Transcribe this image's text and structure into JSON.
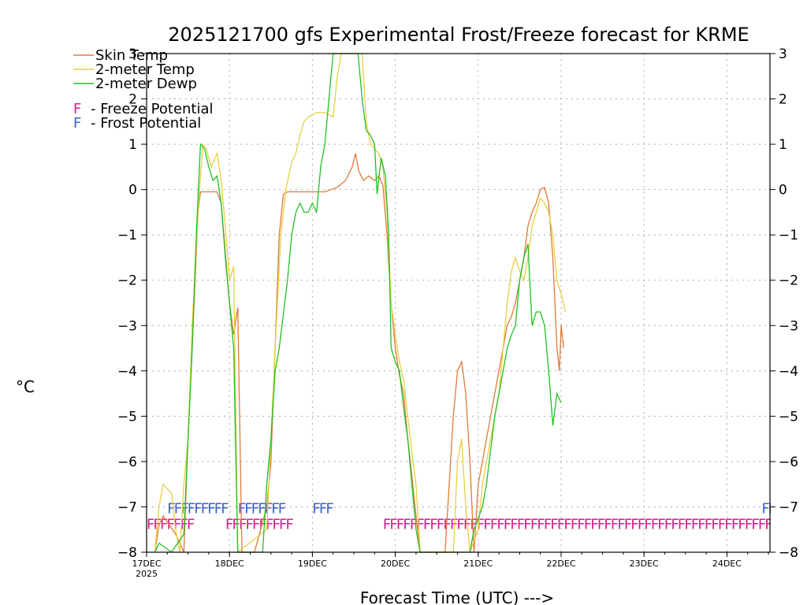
{
  "chart_data": {
    "type": "line",
    "title": "2025121700 gfs Experimental Frost/Freeze forecast for KRME",
    "ylabel": "°C",
    "xlabel": "Forecast Time (UTC)  --->",
    "ylim": [
      -8,
      3
    ],
    "yticks": [
      3,
      2,
      1,
      0,
      -1,
      -2,
      -3,
      -4,
      -5,
      -6,
      -7,
      -8
    ],
    "xlim": [
      0,
      7.5
    ],
    "x_unit": "days since 17DEC 00Z",
    "xticks": [
      {
        "value": 0,
        "label": "17DEC",
        "sub": "2025"
      },
      {
        "value": 1,
        "label": "18DEC",
        "sub": ""
      },
      {
        "value": 2,
        "label": "19DEC",
        "sub": ""
      },
      {
        "value": 3,
        "label": "20DEC",
        "sub": ""
      },
      {
        "value": 4,
        "label": "21DEC",
        "sub": ""
      },
      {
        "value": 5,
        "label": "22DEC",
        "sub": ""
      },
      {
        "value": 6,
        "label": "23DEC",
        "sub": ""
      },
      {
        "value": 7,
        "label": "24DEC",
        "sub": ""
      }
    ],
    "series": [
      {
        "name": "Skin Temp",
        "color": "#e07a3a",
        "points": [
          [
            0.1,
            -8.0
          ],
          [
            0.15,
            -7.4
          ],
          [
            0.2,
            -7.2
          ],
          [
            0.35,
            -7.6
          ],
          [
            0.45,
            -8.0
          ],
          [
            0.5,
            -5.5
          ],
          [
            0.55,
            -3.5
          ],
          [
            0.62,
            -0.5
          ],
          [
            0.65,
            -0.05
          ],
          [
            0.85,
            -0.05
          ],
          [
            0.9,
            -0.3
          ],
          [
            1.0,
            -2.5
          ],
          [
            1.05,
            -3.2
          ],
          [
            1.1,
            -2.6
          ],
          [
            1.15,
            -8.0
          ],
          [
            1.3,
            -8.0
          ],
          [
            1.45,
            -7.0
          ],
          [
            1.5,
            -6.0
          ],
          [
            1.55,
            -3.5
          ],
          [
            1.6,
            -1.0
          ],
          [
            1.65,
            -0.1
          ],
          [
            1.7,
            -0.05
          ],
          [
            2.15,
            -0.05
          ],
          [
            2.3,
            0.05
          ],
          [
            2.4,
            0.2
          ],
          [
            2.48,
            0.5
          ],
          [
            2.52,
            0.8
          ],
          [
            2.56,
            0.4
          ],
          [
            2.62,
            0.2
          ],
          [
            2.68,
            0.3
          ],
          [
            2.75,
            0.2
          ],
          [
            2.8,
            0.3
          ],
          [
            2.85,
            0.1
          ],
          [
            2.9,
            -1.0
          ],
          [
            2.95,
            -2.5
          ],
          [
            3.0,
            -3.5
          ],
          [
            3.05,
            -4.1
          ],
          [
            3.1,
            -4.5
          ],
          [
            3.15,
            -5.5
          ],
          [
            3.2,
            -6.3
          ],
          [
            3.25,
            -7.2
          ],
          [
            3.3,
            -8.0
          ],
          [
            3.6,
            -8.0
          ],
          [
            3.65,
            -6.5
          ],
          [
            3.7,
            -5.0
          ],
          [
            3.75,
            -4.0
          ],
          [
            3.8,
            -3.8
          ],
          [
            3.85,
            -4.5
          ],
          [
            3.9,
            -6.0
          ],
          [
            3.95,
            -8.0
          ],
          [
            4.0,
            -6.5
          ],
          [
            4.05,
            -6.0
          ],
          [
            4.1,
            -5.5
          ],
          [
            4.2,
            -4.5
          ],
          [
            4.25,
            -4.0
          ],
          [
            4.3,
            -3.5
          ],
          [
            4.35,
            -3.0
          ],
          [
            4.4,
            -2.8
          ],
          [
            4.45,
            -2.5
          ],
          [
            4.5,
            -2.0
          ],
          [
            4.55,
            -1.5
          ],
          [
            4.6,
            -0.8
          ],
          [
            4.65,
            -0.5
          ],
          [
            4.7,
            -0.3
          ],
          [
            4.75,
            0.0
          ],
          [
            4.8,
            0.05
          ],
          [
            4.85,
            -0.3
          ],
          [
            4.9,
            -1.5
          ],
          [
            4.95,
            -3.5
          ],
          [
            4.98,
            -4.0
          ],
          [
            5.0,
            -3.0
          ],
          [
            5.03,
            -3.5
          ]
        ]
      },
      {
        "name": "2-meter Temp",
        "color": "#e6d040",
        "points": [
          [
            0.1,
            -8.0
          ],
          [
            0.15,
            -7.0
          ],
          [
            0.2,
            -6.5
          ],
          [
            0.3,
            -6.7
          ],
          [
            0.35,
            -7.5
          ],
          [
            0.4,
            -8.0
          ],
          [
            0.45,
            -6.5
          ],
          [
            0.5,
            -5.5
          ],
          [
            0.55,
            -3.0
          ],
          [
            0.62,
            -0.5
          ],
          [
            0.68,
            1.0
          ],
          [
            0.72,
            0.9
          ],
          [
            0.78,
            0.5
          ],
          [
            0.85,
            0.8
          ],
          [
            0.9,
            0.2
          ],
          [
            0.95,
            -0.8
          ],
          [
            1.0,
            -2.0
          ],
          [
            1.05,
            -1.7
          ],
          [
            1.1,
            -8.0
          ],
          [
            1.45,
            -7.5
          ],
          [
            1.5,
            -5.5
          ],
          [
            1.55,
            -3.5
          ],
          [
            1.62,
            -1.0
          ],
          [
            1.68,
            0.0
          ],
          [
            1.75,
            0.6
          ],
          [
            1.8,
            0.8
          ],
          [
            1.85,
            1.2
          ],
          [
            1.9,
            1.5
          ],
          [
            1.95,
            1.6
          ],
          [
            2.05,
            1.7
          ],
          [
            2.15,
            1.7
          ],
          [
            2.25,
            1.6
          ],
          [
            2.3,
            2.5
          ],
          [
            2.35,
            3.0
          ],
          [
            2.5,
            3.0
          ],
          [
            2.6,
            3.0
          ],
          [
            2.65,
            1.5
          ],
          [
            2.7,
            1.0
          ],
          [
            2.75,
            0.9
          ],
          [
            2.8,
            0.8
          ],
          [
            2.85,
            0.5
          ],
          [
            2.9,
            -0.5
          ],
          [
            2.95,
            -2.5
          ],
          [
            3.0,
            -3.2
          ],
          [
            3.05,
            -3.8
          ],
          [
            3.1,
            -4.2
          ],
          [
            3.15,
            -5.0
          ],
          [
            3.2,
            -5.8
          ],
          [
            3.25,
            -6.5
          ],
          [
            3.3,
            -8.0
          ],
          [
            3.7,
            -8.0
          ],
          [
            3.75,
            -6.0
          ],
          [
            3.8,
            -5.5
          ],
          [
            3.85,
            -7.0
          ],
          [
            3.9,
            -8.0
          ],
          [
            4.0,
            -7.5
          ],
          [
            4.05,
            -6.5
          ],
          [
            4.15,
            -5.5
          ],
          [
            4.25,
            -4.5
          ],
          [
            4.3,
            -3.5
          ],
          [
            4.35,
            -2.5
          ],
          [
            4.4,
            -1.8
          ],
          [
            4.45,
            -1.5
          ],
          [
            4.5,
            -1.8
          ],
          [
            4.55,
            -2.0
          ],
          [
            4.6,
            -1.5
          ],
          [
            4.65,
            -0.8
          ],
          [
            4.7,
            -0.5
          ],
          [
            4.75,
            -0.2
          ],
          [
            4.8,
            -0.3
          ],
          [
            4.85,
            -0.5
          ],
          [
            4.9,
            -1.0
          ],
          [
            4.95,
            -2.0
          ],
          [
            5.0,
            -2.3
          ],
          [
            5.05,
            -2.7
          ]
        ]
      },
      {
        "name": "2-meter Dewp",
        "color": "#22c022",
        "points": [
          [
            0.1,
            -8.0
          ],
          [
            0.15,
            -7.8
          ],
          [
            0.3,
            -8.0
          ],
          [
            0.45,
            -7.6
          ],
          [
            0.5,
            -5.5
          ],
          [
            0.55,
            -3.5
          ],
          [
            0.6,
            -1.0
          ],
          [
            0.65,
            1.0
          ],
          [
            0.7,
            0.9
          ],
          [
            0.75,
            0.5
          ],
          [
            0.8,
            0.2
          ],
          [
            0.85,
            0.3
          ],
          [
            0.9,
            -0.3
          ],
          [
            0.95,
            -1.5
          ],
          [
            1.0,
            -2.5
          ],
          [
            1.05,
            -3.5
          ],
          [
            1.1,
            -8.0
          ],
          [
            1.4,
            -8.0
          ],
          [
            1.45,
            -6.5
          ],
          [
            1.5,
            -5.5
          ],
          [
            1.55,
            -4.0
          ],
          [
            1.6,
            -3.5
          ],
          [
            1.7,
            -2.0
          ],
          [
            1.75,
            -1.0
          ],
          [
            1.8,
            -0.5
          ],
          [
            1.85,
            -0.3
          ],
          [
            1.9,
            -0.5
          ],
          [
            1.95,
            -0.5
          ],
          [
            2.0,
            -0.3
          ],
          [
            2.05,
            -0.5
          ],
          [
            2.1,
            0.5
          ],
          [
            2.15,
            1.0
          ],
          [
            2.2,
            2.0
          ],
          [
            2.25,
            3.0
          ],
          [
            2.55,
            3.0
          ],
          [
            2.6,
            2.0
          ],
          [
            2.65,
            1.3
          ],
          [
            2.7,
            1.2
          ],
          [
            2.75,
            1.0
          ],
          [
            2.78,
            -0.1
          ],
          [
            2.83,
            0.7
          ],
          [
            2.88,
            0.3
          ],
          [
            2.92,
            -1.0
          ],
          [
            2.95,
            -3.5
          ],
          [
            3.0,
            -3.8
          ],
          [
            3.05,
            -4.0
          ],
          [
            3.1,
            -4.8
          ],
          [
            3.15,
            -5.5
          ],
          [
            3.2,
            -6.5
          ],
          [
            3.25,
            -7.5
          ],
          [
            3.3,
            -8.0
          ],
          [
            3.9,
            -8.0
          ],
          [
            3.95,
            -7.5
          ],
          [
            4.05,
            -7.0
          ],
          [
            4.1,
            -6.5
          ],
          [
            4.2,
            -5.0
          ],
          [
            4.25,
            -4.5
          ],
          [
            4.3,
            -4.0
          ],
          [
            4.35,
            -3.5
          ],
          [
            4.4,
            -3.2
          ],
          [
            4.45,
            -3.0
          ],
          [
            4.5,
            -2.0
          ],
          [
            4.55,
            -1.5
          ],
          [
            4.6,
            -1.2
          ],
          [
            4.65,
            -3.0
          ],
          [
            4.7,
            -2.7
          ],
          [
            4.75,
            -2.7
          ],
          [
            4.8,
            -3.0
          ],
          [
            4.85,
            -4.0
          ],
          [
            4.9,
            -5.2
          ],
          [
            4.95,
            -4.5
          ],
          [
            5.0,
            -4.7
          ]
        ]
      }
    ],
    "legend": {
      "entries": [
        {
          "label": "Skin Temp",
          "color": "#e07a3a"
        },
        {
          "label": "2-meter Temp",
          "color": "#e6d040"
        },
        {
          "label": "2-meter Dewp",
          "color": "#22c022"
        }
      ],
      "markers": [
        {
          "glyph": "F",
          "label": "- Freeze Potential",
          "color": "#d0208a"
        },
        {
          "glyph": "F",
          "label": "- Frost Potential",
          "color": "#4060d0"
        }
      ]
    },
    "frost_markers": {
      "glyph": "F",
      "color": "#4060d0",
      "level": -7.0,
      "segments": [
        [
          0.25,
          0.95
        ],
        [
          1.1,
          1.6
        ],
        [
          2.0,
          2.2
        ],
        [
          7.5,
          7.5
        ]
      ]
    },
    "freeze_markers": {
      "glyph": "F",
      "color": "#d0208a",
      "level": -7.35,
      "segments": [
        [
          0.0,
          0.55
        ],
        [
          0.95,
          1.7
        ],
        [
          2.85,
          7.5
        ]
      ]
    }
  }
}
